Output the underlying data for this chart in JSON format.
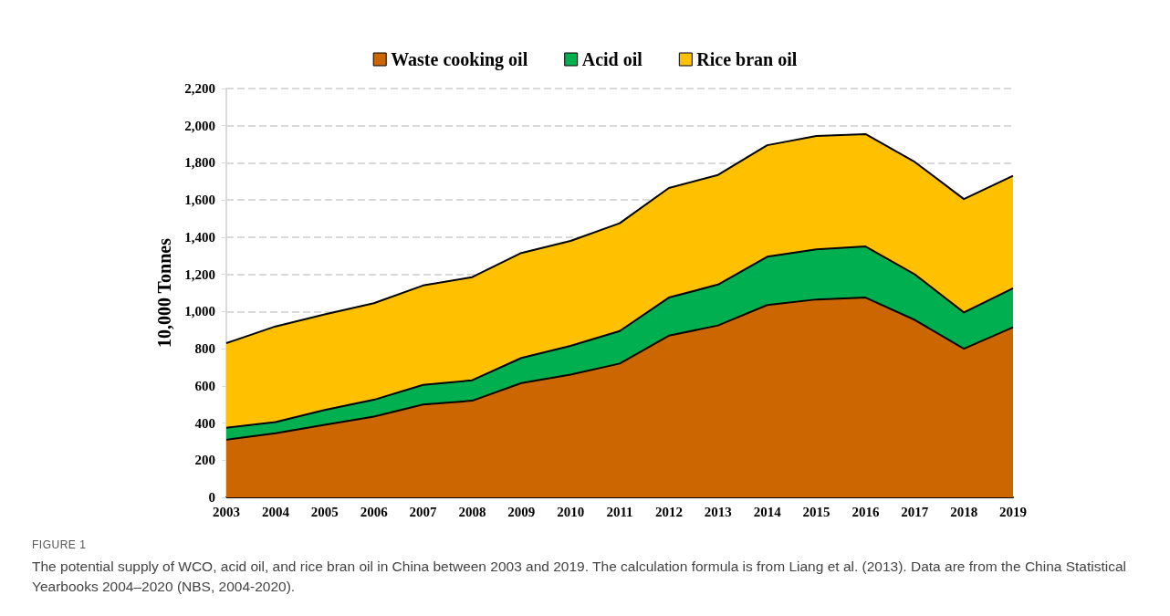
{
  "chart_data": {
    "type": "area",
    "stacked": true,
    "ylabel": "10,000 Tonnes",
    "categories": [
      "2003",
      "2004",
      "2005",
      "2006",
      "2007",
      "2008",
      "2009",
      "2010",
      "2011",
      "2012",
      "2013",
      "2014",
      "2015",
      "2016",
      "2017",
      "2018",
      "2019"
    ],
    "series": [
      {
        "name": "Waste cooking oil",
        "color": "#cc6600",
        "values": [
          310,
          345,
          390,
          435,
          500,
          520,
          615,
          660,
          720,
          870,
          925,
          1035,
          1065,
          1075,
          955,
          800,
          915
        ]
      },
      {
        "name": "Acid oil",
        "color": "#00b050",
        "values": [
          65,
          60,
          80,
          90,
          105,
          110,
          135,
          155,
          175,
          205,
          220,
          260,
          270,
          275,
          245,
          195,
          210
        ]
      },
      {
        "name": "Rice bran oil",
        "color": "#ffc000",
        "values": [
          455,
          515,
          515,
          520,
          535,
          555,
          565,
          565,
          580,
          590,
          590,
          600,
          610,
          605,
          605,
          610,
          605
        ]
      }
    ],
    "ylim": [
      0,
      2200
    ],
    "yticks": [
      0,
      200,
      400,
      600,
      800,
      {
        "value": 1000,
        "label": "1,000"
      },
      {
        "value": 1200,
        "label": "1,200"
      },
      {
        "value": 1400,
        "label": "1,400"
      },
      {
        "value": 1600,
        "label": "1,600"
      },
      {
        "value": 1800,
        "label": "1,800"
      },
      {
        "value": 2000,
        "label": "2,000"
      },
      {
        "value": 2200,
        "label": "2,200"
      }
    ],
    "grid": "y",
    "legend": "top",
    "annotations": [
      "FIGURE 1",
      "The potential supply of WCO, acid oil, and rice bran oil in China between 2003 and 2019. The calculation formula is from Liang et al. (2013). Data are from the China Statistical Yearbooks 2004–2020 (NBS, 2004-2020)."
    ]
  }
}
